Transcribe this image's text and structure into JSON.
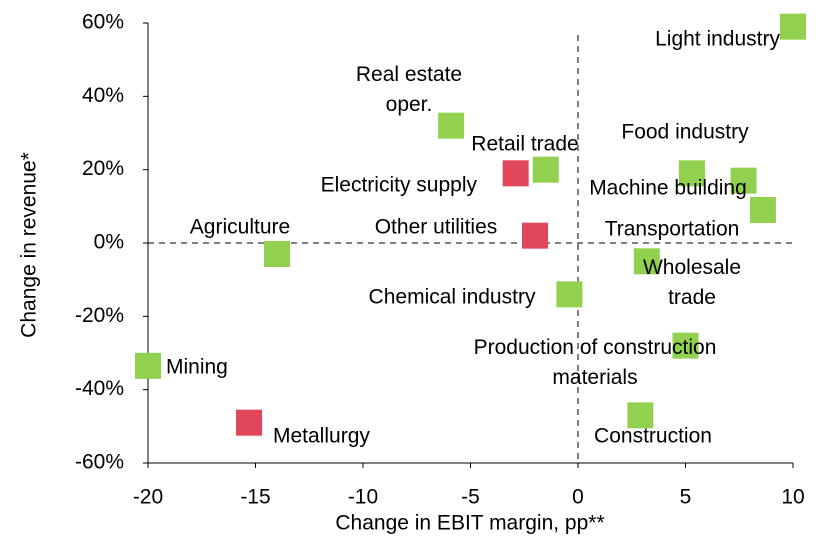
{
  "chart_data": {
    "type": "scatter",
    "xlabel": "Change in EBIT margin, pp**",
    "ylabel": "Change in revenue*",
    "xlim": [
      -20,
      10
    ],
    "xticks": [
      -20,
      -15,
      -10,
      -5,
      0,
      5,
      10
    ],
    "ylim": [
      -60,
      60
    ],
    "yticks": [
      {
        "value": -60,
        "label": "-60%"
      },
      {
        "value": -40,
        "label": "-40%"
      },
      {
        "value": -20,
        "label": "-20%"
      },
      {
        "value": 0,
        "label": "0%"
      },
      {
        "value": 20,
        "label": "20%"
      },
      {
        "value": 40,
        "label": "40%"
      },
      {
        "value": 60,
        "label": "60%"
      }
    ],
    "series": [
      {
        "color": "#92d050",
        "labels": [
          "Light industry",
          "Real estate\noper.",
          "Retail trade",
          "Food industry",
          "Machine building",
          "Transportation",
          "Agriculture",
          "Wholesale\ntrade",
          "Chemical industry",
          "Production of construction\nmaterials",
          "Mining",
          "Construction"
        ],
        "x": [
          10,
          -5.9,
          -1.5,
          5.3,
          7.7,
          8.6,
          -14,
          3.2,
          -0.4,
          5,
          -20,
          2.9
        ],
        "values": [
          59,
          32,
          20,
          19,
          17,
          9,
          -3,
          -5,
          -14,
          -28,
          -33.5,
          -47
        ]
      },
      {
        "color": "#e0475b",
        "labels": [
          "Electricity supply",
          "Other utilities",
          "Metallurgy"
        ],
        "x": [
          -2.9,
          -2,
          -15.3
        ],
        "values": [
          19,
          2,
          -49
        ]
      }
    ]
  }
}
